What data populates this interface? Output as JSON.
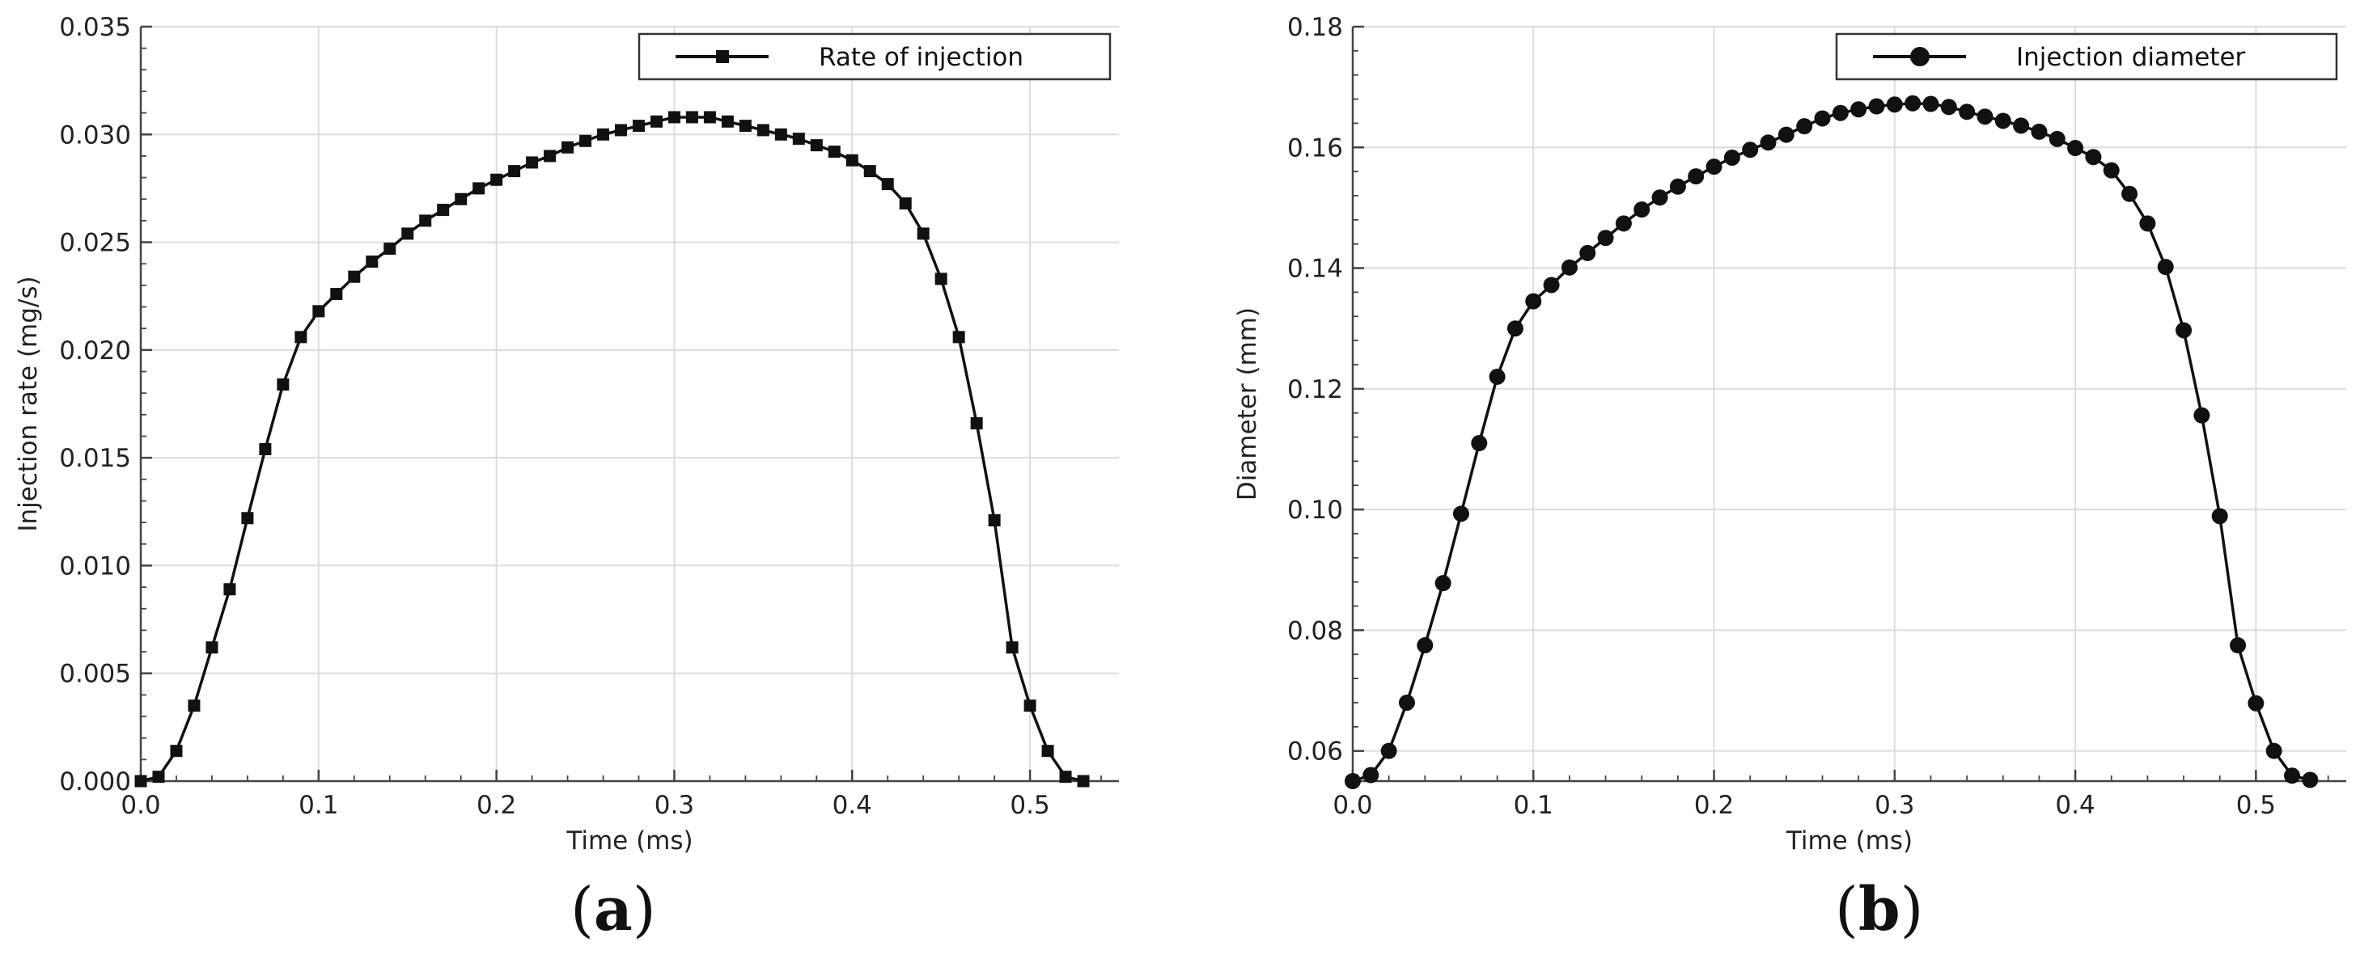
{
  "chart_data": [
    {
      "type": "line",
      "panel_label": "a",
      "xlabel": "Time (ms)",
      "ylabel": "Injection rate (mg/s)",
      "xlim": [
        0.0,
        0.55
      ],
      "ylim": [
        0.0,
        0.035
      ],
      "x_ticks": [
        "0.0",
        "0.1",
        "0.2",
        "0.3",
        "0.4",
        "0.5"
      ],
      "y_ticks": [
        "0.000",
        "0.005",
        "0.010",
        "0.015",
        "0.020",
        "0.025",
        "0.030",
        "0.035"
      ],
      "grid": true,
      "legend_position": "top-right",
      "marker": "square",
      "series": [
        {
          "name": "Rate of injection",
          "x": [
            0.0,
            0.01,
            0.02,
            0.03,
            0.04,
            0.05,
            0.06,
            0.07,
            0.08,
            0.09,
            0.1,
            0.11,
            0.12,
            0.13,
            0.14,
            0.15,
            0.16,
            0.17,
            0.18,
            0.19,
            0.2,
            0.21,
            0.22,
            0.23,
            0.24,
            0.25,
            0.26,
            0.27,
            0.28,
            0.29,
            0.3,
            0.31,
            0.32,
            0.33,
            0.34,
            0.35,
            0.36,
            0.37,
            0.38,
            0.39,
            0.4,
            0.41,
            0.42,
            0.43,
            0.44,
            0.45,
            0.46,
            0.47,
            0.48,
            0.49,
            0.5,
            0.51,
            0.52,
            0.53
          ],
          "values": [
            0.0,
            0.0002,
            0.0014,
            0.0035,
            0.0062,
            0.0089,
            0.0122,
            0.0154,
            0.0184,
            0.0206,
            0.0218,
            0.0226,
            0.0234,
            0.0241,
            0.0247,
            0.0254,
            0.026,
            0.0265,
            0.027,
            0.0275,
            0.0279,
            0.0283,
            0.0287,
            0.029,
            0.0294,
            0.0297,
            0.03,
            0.0302,
            0.0304,
            0.0306,
            0.0308,
            0.0308,
            0.0308,
            0.0306,
            0.0304,
            0.0302,
            0.03,
            0.0298,
            0.0295,
            0.0292,
            0.0288,
            0.0283,
            0.0277,
            0.0268,
            0.0254,
            0.0233,
            0.0206,
            0.0166,
            0.0121,
            0.0062,
            0.0035,
            0.0014,
            0.0002,
            0.0
          ]
        }
      ]
    },
    {
      "type": "line",
      "panel_label": "b",
      "xlabel": "Time (ms)",
      "ylabel": "Diameter (mm)",
      "xlim": [
        0.0,
        0.55
      ],
      "ylim": [
        0.055,
        0.18
      ],
      "x_ticks": [
        "0.0",
        "0.1",
        "0.2",
        "0.3",
        "0.4",
        "0.5"
      ],
      "y_ticks": [
        "0.06",
        "0.08",
        "0.10",
        "0.12",
        "0.14",
        "0.16",
        "0.18"
      ],
      "grid": true,
      "legend_position": "top-right",
      "marker": "circle",
      "series": [
        {
          "name": "Injection diameter",
          "x": [
            0.0,
            0.01,
            0.02,
            0.03,
            0.04,
            0.05,
            0.06,
            0.07,
            0.08,
            0.09,
            0.1,
            0.11,
            0.12,
            0.13,
            0.14,
            0.15,
            0.16,
            0.17,
            0.18,
            0.19,
            0.2,
            0.21,
            0.22,
            0.23,
            0.24,
            0.25,
            0.26,
            0.27,
            0.28,
            0.29,
            0.3,
            0.31,
            0.32,
            0.33,
            0.34,
            0.35,
            0.36,
            0.37,
            0.38,
            0.39,
            0.4,
            0.41,
            0.42,
            0.43,
            0.44,
            0.45,
            0.46,
            0.47,
            0.48,
            0.49,
            0.5,
            0.51,
            0.52,
            0.53
          ],
          "values": [
            0.055,
            0.056,
            0.06,
            0.068,
            0.0775,
            0.0878,
            0.0993,
            0.111,
            0.122,
            0.13,
            0.1345,
            0.1372,
            0.1401,
            0.1425,
            0.145,
            0.1474,
            0.1497,
            0.1517,
            0.1535,
            0.1552,
            0.1568,
            0.1583,
            0.1596,
            0.1608,
            0.1621,
            0.1635,
            0.1648,
            0.1657,
            0.1663,
            0.1668,
            0.1671,
            0.1673,
            0.1672,
            0.1667,
            0.1659,
            0.1651,
            0.1644,
            0.1636,
            0.1626,
            0.1614,
            0.1599,
            0.1584,
            0.1562,
            0.1523,
            0.1474,
            0.1402,
            0.1297,
            0.1156,
            0.0989,
            0.0775,
            0.0679,
            0.06,
            0.0559,
            0.0552
          ]
        }
      ]
    }
  ]
}
